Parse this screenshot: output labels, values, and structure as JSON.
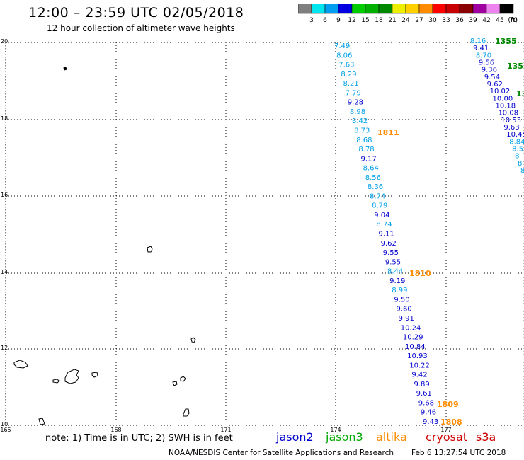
{
  "header": {
    "title": "12:00 – 23:59 UTC 02/05/2018",
    "subtitle": "12 hour collection of altimeter wave heights"
  },
  "colorbar": {
    "unit": "(ft)",
    "bins": [
      {
        "label": "3",
        "color": "#7f7f7f"
      },
      {
        "label": "6",
        "color": "#00e5ee"
      },
      {
        "label": "9",
        "color": "#009ef0"
      },
      {
        "label": "12",
        "color": "#0000e0"
      },
      {
        "label": "15",
        "color": "#00cc00"
      },
      {
        "label": "18",
        "color": "#00b000"
      },
      {
        "label": "21",
        "color": "#008800"
      },
      {
        "label": "24",
        "color": "#eeee00"
      },
      {
        "label": "27",
        "color": "#ffd000"
      },
      {
        "label": "30",
        "color": "#ff8c00"
      },
      {
        "label": "33",
        "color": "#ff0000"
      },
      {
        "label": "36",
        "color": "#c80000"
      },
      {
        "label": "39",
        "color": "#8b0000"
      },
      {
        "label": "42",
        "color": "#a000a0"
      },
      {
        "label": "45",
        "color": "#ee82ee"
      },
      {
        "label": "70",
        "color": "#000000"
      }
    ]
  },
  "axes": {
    "y_ticks": [
      "20",
      "18",
      "16",
      "14",
      "12",
      "10"
    ],
    "x_ticks": [
      "165",
      "168",
      "171",
      "174",
      "177"
    ]
  },
  "passes": [
    {
      "time": "1811",
      "color": "#ff8c00"
    },
    {
      "time": "1810",
      "color": "#ff8c00"
    },
    {
      "time": "1809",
      "color": "#ff8c00"
    },
    {
      "time": "1808",
      "color": "#ff8c00"
    },
    {
      "time": "1355",
      "color": "#008800"
    }
  ],
  "track_main": [
    {
      "v": "7.49",
      "c": "#00a0e8"
    },
    {
      "v": "8.06",
      "c": "#00a0e8"
    },
    {
      "v": "7.63",
      "c": "#00a0e8"
    },
    {
      "v": "8.29",
      "c": "#00a0e8"
    },
    {
      "v": "8.21",
      "c": "#00a0e8"
    },
    {
      "v": "7.79",
      "c": "#00a0e8"
    },
    {
      "v": "9.28",
      "c": "#0000cc"
    },
    {
      "v": "8.98",
      "c": "#00a0e8"
    },
    {
      "v": "8.42",
      "c": "#00a0e8"
    },
    {
      "v": "8.73",
      "c": "#00a0e8"
    },
    {
      "v": "8.68",
      "c": "#00a0e8"
    },
    {
      "v": "8.78",
      "c": "#00a0e8"
    },
    {
      "v": "9.17",
      "c": "#0000cc"
    },
    {
      "v": "8.64",
      "c": "#00a0e8"
    },
    {
      "v": "8.56",
      "c": "#00a0e8"
    },
    {
      "v": "8.36",
      "c": "#00a0e8"
    },
    {
      "v": "8.74",
      "c": "#00a0e8"
    },
    {
      "v": "8.79",
      "c": "#00a0e8"
    },
    {
      "v": "9.04",
      "c": "#0000cc"
    },
    {
      "v": "8.74",
      "c": "#00a0e8"
    },
    {
      "v": "9.11",
      "c": "#0000cc"
    },
    {
      "v": "9.62",
      "c": "#0000cc"
    },
    {
      "v": "9.55",
      "c": "#0000cc"
    },
    {
      "v": "9.55",
      "c": "#0000cc"
    },
    {
      "v": "8.44",
      "c": "#00a0e8"
    },
    {
      "v": "9.19",
      "c": "#0000cc"
    },
    {
      "v": "8.99",
      "c": "#00a0e8"
    },
    {
      "v": "9.50",
      "c": "#0000cc"
    },
    {
      "v": "9.60",
      "c": "#0000cc"
    },
    {
      "v": "9.91",
      "c": "#0000cc"
    },
    {
      "v": "10.24",
      "c": "#0000cc"
    },
    {
      "v": "10.29",
      "c": "#0000cc"
    },
    {
      "v": "10.84",
      "c": "#0000cc"
    },
    {
      "v": "10.93",
      "c": "#0000cc"
    },
    {
      "v": "10.22",
      "c": "#0000cc"
    },
    {
      "v": "9.42",
      "c": "#0000cc"
    },
    {
      "v": "9.89",
      "c": "#0000cc"
    },
    {
      "v": "9.61",
      "c": "#0000cc"
    },
    {
      "v": "9.68",
      "c": "#0000cc"
    },
    {
      "v": "9.46",
      "c": "#0000cc"
    },
    {
      "v": "9.43",
      "c": "#0000cc"
    }
  ],
  "track_right": [
    {
      "v": "8.16",
      "c": "#00a0e8"
    },
    {
      "v": "9.41",
      "c": "#0000cc"
    },
    {
      "v": "8.70",
      "c": "#00a0e8"
    },
    {
      "v": "9.56",
      "c": "#0000cc"
    },
    {
      "v": "9.36",
      "c": "#0000cc"
    },
    {
      "v": "9.54",
      "c": "#0000cc"
    },
    {
      "v": "9.62",
      "c": "#0000cc"
    },
    {
      "v": "10.02",
      "c": "#0000cc"
    },
    {
      "v": "10.00",
      "c": "#0000cc"
    },
    {
      "v": "10.18",
      "c": "#0000cc"
    },
    {
      "v": "10.08",
      "c": "#0000cc"
    },
    {
      "v": "10.53",
      "c": "#0000cc"
    },
    {
      "v": "9.63",
      "c": "#0000cc"
    },
    {
      "v": "10.45",
      "c": "#0000cc"
    },
    {
      "v": "8.84",
      "c": "#00a0e8"
    },
    {
      "v": "8.5",
      "c": "#00a0e8"
    },
    {
      "v": "8",
      "c": "#00a0e8"
    },
    {
      "v": "8",
      "c": "#00a0e8"
    },
    {
      "v": "8",
      "c": "#00a0e8"
    }
  ],
  "note": "note:  1) Time is in UTC; 2) SWH is in feet",
  "satellites": [
    {
      "name": "jason2",
      "color": "#0000cc"
    },
    {
      "name": "jason3",
      "color": "#00aa00"
    },
    {
      "name": "altika",
      "color": "#ff8c00"
    },
    {
      "name": "cryosat",
      "color": "#cc0000"
    },
    {
      "name": "s3a",
      "color": "#cc0000"
    }
  ],
  "footer": {
    "credit": "NOAA/NESDIS Center for Satellite Applications and Research",
    "timestamp": "Feb  6 13:27:54 UTC 2018"
  }
}
